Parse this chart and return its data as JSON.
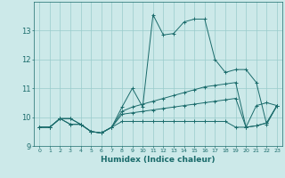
{
  "title": "",
  "xlabel": "Humidex (Indice chaleur)",
  "ylabel": "",
  "background_color": "#cce9e9",
  "grid_color": "#99cccc",
  "line_color": "#1a6b6b",
  "xlim": [
    -0.5,
    23.5
  ],
  "ylim": [
    9.0,
    14.0
  ],
  "xticks": [
    0,
    1,
    2,
    3,
    4,
    5,
    6,
    7,
    8,
    9,
    10,
    11,
    12,
    13,
    14,
    15,
    16,
    17,
    18,
    19,
    20,
    21,
    22,
    23
  ],
  "yticks": [
    9,
    10,
    11,
    12,
    13
  ],
  "lines": [
    [
      9.65,
      9.65,
      9.95,
      9.95,
      9.75,
      9.5,
      9.45,
      9.65,
      10.35,
      11.0,
      10.35,
      13.55,
      12.85,
      12.9,
      13.3,
      13.4,
      13.4,
      12.0,
      11.55,
      11.65,
      11.65,
      11.2,
      9.75,
      10.4
    ],
    [
      9.65,
      9.65,
      9.95,
      9.95,
      9.75,
      9.5,
      9.45,
      9.65,
      10.2,
      10.35,
      10.45,
      10.55,
      10.65,
      10.75,
      10.85,
      10.95,
      11.05,
      11.1,
      11.15,
      11.2,
      9.65,
      10.4,
      10.5,
      10.4
    ],
    [
      9.65,
      9.65,
      9.95,
      9.75,
      9.75,
      9.5,
      9.45,
      9.65,
      10.1,
      10.15,
      10.2,
      10.25,
      10.3,
      10.35,
      10.4,
      10.45,
      10.5,
      10.55,
      10.6,
      10.65,
      9.65,
      9.7,
      9.8,
      10.4
    ],
    [
      9.65,
      9.65,
      9.95,
      9.75,
      9.75,
      9.5,
      9.45,
      9.65,
      9.85,
      9.85,
      9.85,
      9.85,
      9.85,
      9.85,
      9.85,
      9.85,
      9.85,
      9.85,
      9.85,
      9.65,
      9.65,
      9.7,
      9.8,
      10.4
    ]
  ]
}
